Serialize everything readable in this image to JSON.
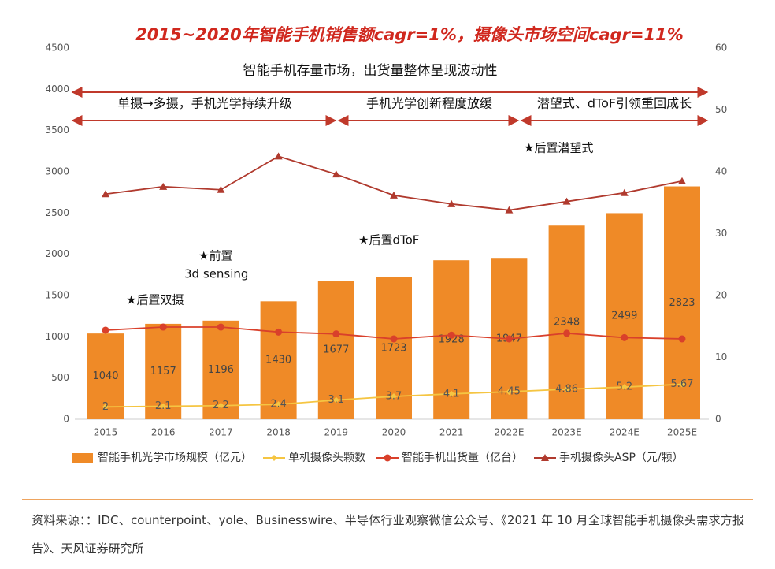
{
  "chart_data": {
    "type": "combo",
    "title": "2015~2020年智能手机销售额cagr=1%，摄像头市场空间cagr=11%",
    "subtitle": "智能手机存量市场，出货量整体呈现波动性",
    "stages": [
      "单摄→多摄，手机光学持续升级",
      "手机光学创新程度放缓",
      "潜望式、dToF引领重回成长"
    ],
    "annotations": [
      "★后置双摄",
      "★前置",
      "3d sensing",
      "★后置dToF",
      "★后置潜望式"
    ],
    "categories": [
      "2015",
      "2016",
      "2017",
      "2018",
      "2019",
      "2020",
      "2021",
      "2022E",
      "2023E",
      "2024E",
      "2025E"
    ],
    "series": [
      {
        "name": "智能手机光学市场规模（亿元）",
        "type": "bar",
        "color": "#ef8a27",
        "values": [
          1040,
          1157,
          1196,
          1430,
          1677,
          1723,
          1928,
          1947,
          2348,
          2499,
          2823
        ]
      },
      {
        "name": "单机摄像头颗数",
        "type": "line",
        "marker": "diamond",
        "axis": "y2",
        "color": "#f5c542",
        "values": [
          2,
          2.1,
          2.2,
          2.4,
          3.1,
          3.7,
          4.1,
          4.45,
          4.86,
          5.2,
          5.67
        ]
      },
      {
        "name": "智能手机出货量（亿台）",
        "type": "line",
        "marker": "circle",
        "axis": "y2",
        "color": "#d9402b",
        "values": [
          14.4,
          14.9,
          14.9,
          14.1,
          13.8,
          13.0,
          13.6,
          13.0,
          13.9,
          13.2,
          13.0
        ]
      },
      {
        "name": "手机摄像头ASP（元/颗）",
        "type": "line",
        "marker": "triangle",
        "axis": "y2",
        "color": "#b03a2e",
        "values": [
          36.4,
          37.6,
          37.1,
          42.5,
          39.6,
          36.2,
          34.8,
          33.8,
          35.2,
          36.6,
          38.5
        ]
      }
    ],
    "labeled_series": [
      0,
      1
    ],
    "ylim": [
      0,
      4500
    ],
    "yticks": [
      0,
      500,
      1000,
      1500,
      2000,
      2500,
      3000,
      3500,
      4000,
      4500
    ],
    "y2lim": [
      0,
      60
    ],
    "y2ticks": [
      0,
      10,
      20,
      30,
      40,
      50,
      60
    ]
  },
  "source": "资料来源：：IDC、counterpoint、yole、Businesswire、半导体行业观察微信公众号、《2021 年 10 月全球智能手机摄像头需求方报告》、天风证券研究所"
}
